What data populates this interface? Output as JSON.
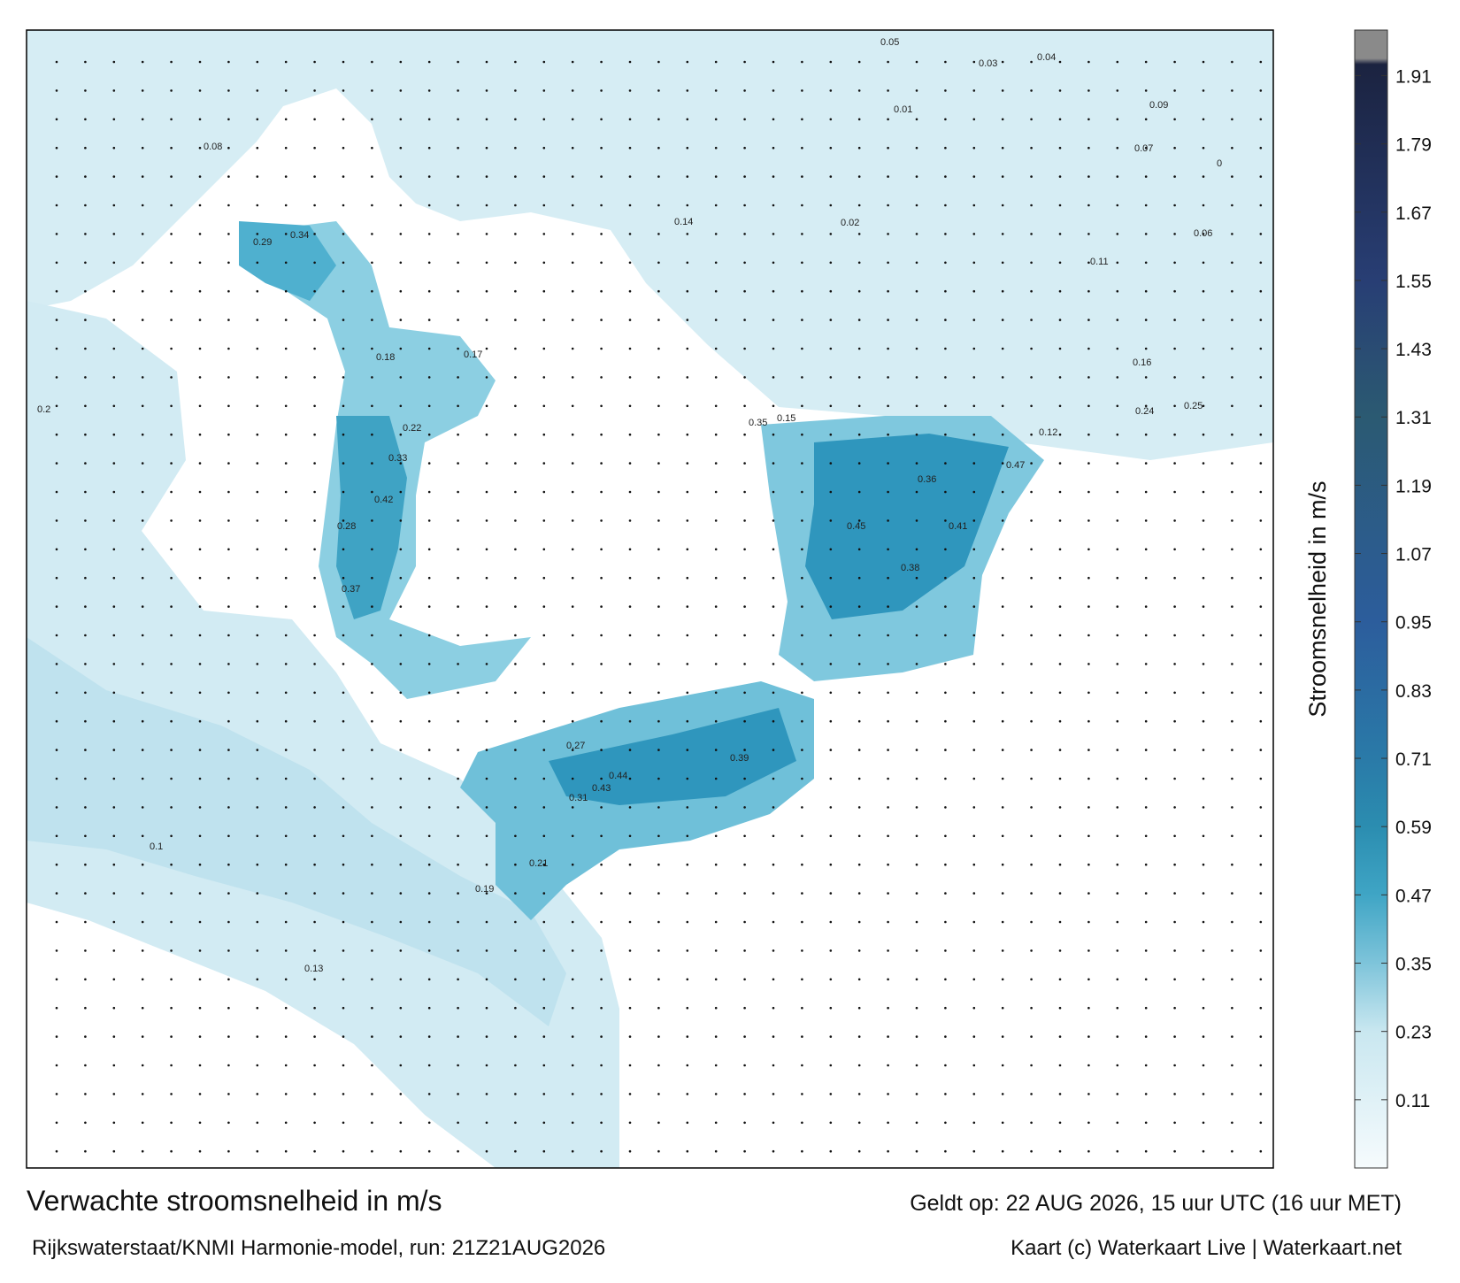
{
  "map": {
    "title": "Verwachte stroomsnelheid in m/s",
    "valid_time": "Geldt op: 22 AUG 2026, 15 uur UTC (16 uur MET)",
    "source": "Rijkswaterstaat/KNMI Harmonie-model, run: 21Z21AUG2026",
    "credit": "Kaart (c) Waterkaart Live | Waterkaart.net",
    "colorbar": {
      "label": "Stroomsnelheid in m/s",
      "range": [
        -0.01,
        1.99
      ],
      "ticks": [
        0.11,
        0.23,
        0.35,
        0.47,
        0.59,
        0.71,
        0.83,
        0.95,
        1.07,
        1.19,
        1.31,
        1.43,
        1.55,
        1.67,
        1.79,
        1.91
      ]
    },
    "labels": [
      0.47,
      0.44,
      0.43,
      0.39,
      0.36,
      0.42,
      0.38,
      0.45,
      0.34,
      0.37,
      0.41,
      0.33,
      0.35,
      0.29,
      0.28,
      0.31,
      0.27,
      0.25,
      0.24,
      0.22,
      0.21,
      0.2,
      0.19,
      0.18,
      0.17,
      0.16,
      0.15,
      0.14,
      0.13,
      0.12,
      0.11,
      0.1,
      0.09,
      0.08,
      0.07,
      0.06,
      0.05,
      0.04,
      0.03,
      0.02,
      0.01,
      0
    ]
  }
}
